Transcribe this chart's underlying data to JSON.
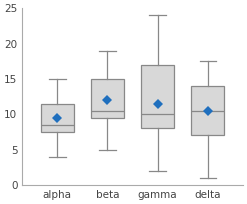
{
  "categories": [
    "alpha",
    "beta",
    "gamma",
    "delta"
  ],
  "boxes": [
    {
      "whislo": 4.0,
      "q1": 7.5,
      "med": 8.5,
      "q3": 11.5,
      "whishi": 15.0,
      "mean": 9.5
    },
    {
      "whislo": 5.0,
      "q1": 9.5,
      "med": 10.5,
      "q3": 15.0,
      "whishi": 19.0,
      "mean": 12.0
    },
    {
      "whislo": 2.0,
      "q1": 8.0,
      "med": 10.0,
      "q3": 17.0,
      "whishi": 24.0,
      "mean": 11.5
    },
    {
      "whislo": 1.0,
      "q1": 7.0,
      "med": 10.5,
      "q3": 14.0,
      "whishi": 17.5,
      "mean": 10.5
    }
  ],
  "ylim": [
    0,
    25
  ],
  "yticks": [
    0,
    5,
    10,
    15,
    20,
    25
  ],
  "box_facecolor": "#d8d8d8",
  "box_edgecolor": "#888888",
  "whisker_color": "#888888",
  "cap_color": "#888888",
  "median_color": "#888888",
  "mean_marker_color": "#1f6fbe",
  "mean_marker": "D",
  "mean_marker_size": 5,
  "background_color": "#ffffff",
  "tick_label_fontsize": 7.5,
  "box_width": 0.65
}
